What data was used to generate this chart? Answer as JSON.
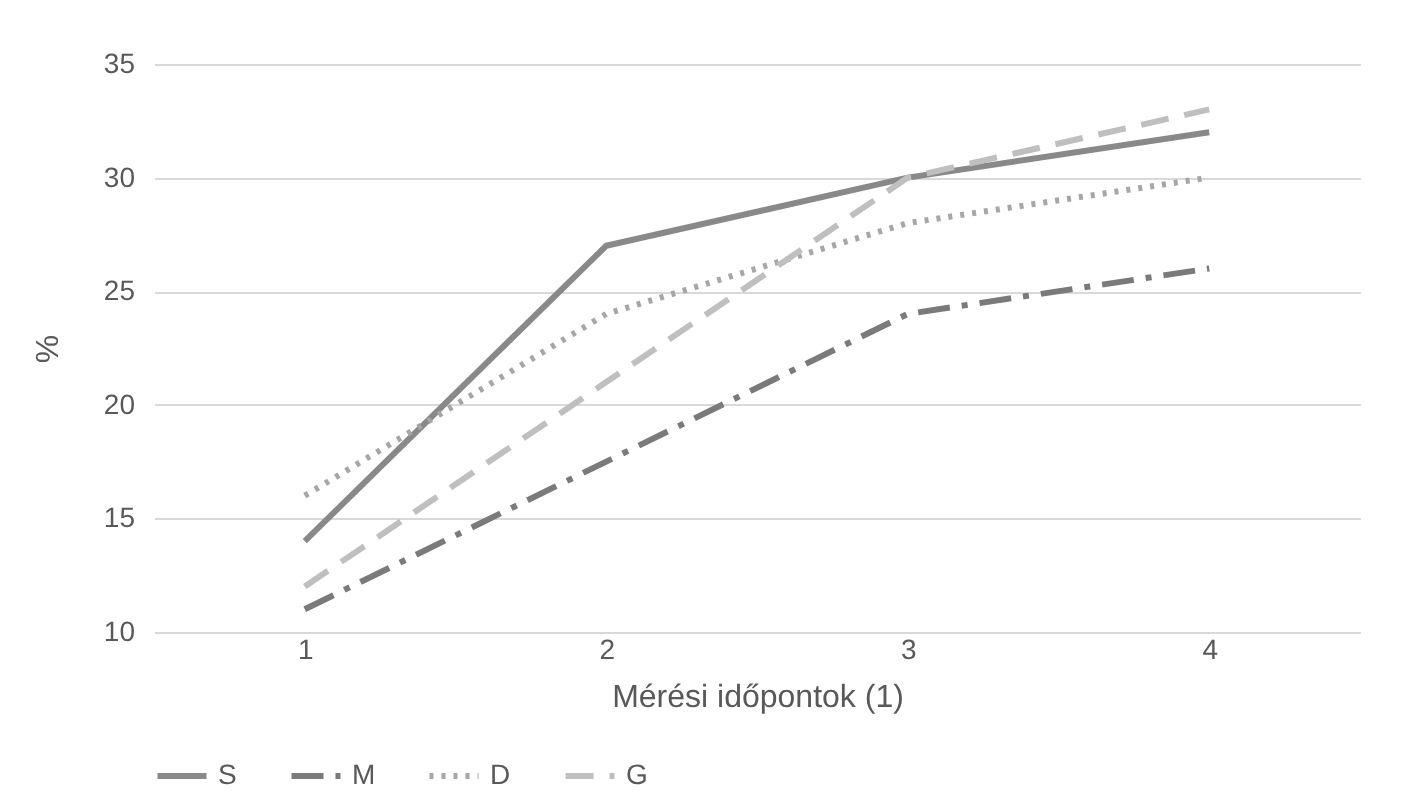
{
  "chart_data": {
    "type": "line",
    "xlabel": "Mérési időpontok (1)",
    "ylabel": "%",
    "categories": [
      "1",
      "2",
      "3",
      "4"
    ],
    "ylim": [
      10,
      35
    ],
    "yticks": [
      10,
      15,
      20,
      25,
      30,
      35
    ],
    "grid": "y",
    "legend": "bottom",
    "series": [
      {
        "name": "S",
        "color": "#898989",
        "line_style": "solid",
        "values": [
          14,
          27,
          30,
          32
        ]
      },
      {
        "name": "M",
        "color": "#7a7a7a",
        "line_style": "dashdot",
        "values": [
          11,
          17.5,
          24,
          26
        ]
      },
      {
        "name": "D",
        "color": "#a6a6a6",
        "line_style": "dotted",
        "values": [
          16,
          24,
          28,
          30
        ]
      },
      {
        "name": "G",
        "color": "#bfbfbf",
        "line_style": "dashed",
        "values": [
          12,
          21,
          30,
          33
        ]
      }
    ]
  }
}
